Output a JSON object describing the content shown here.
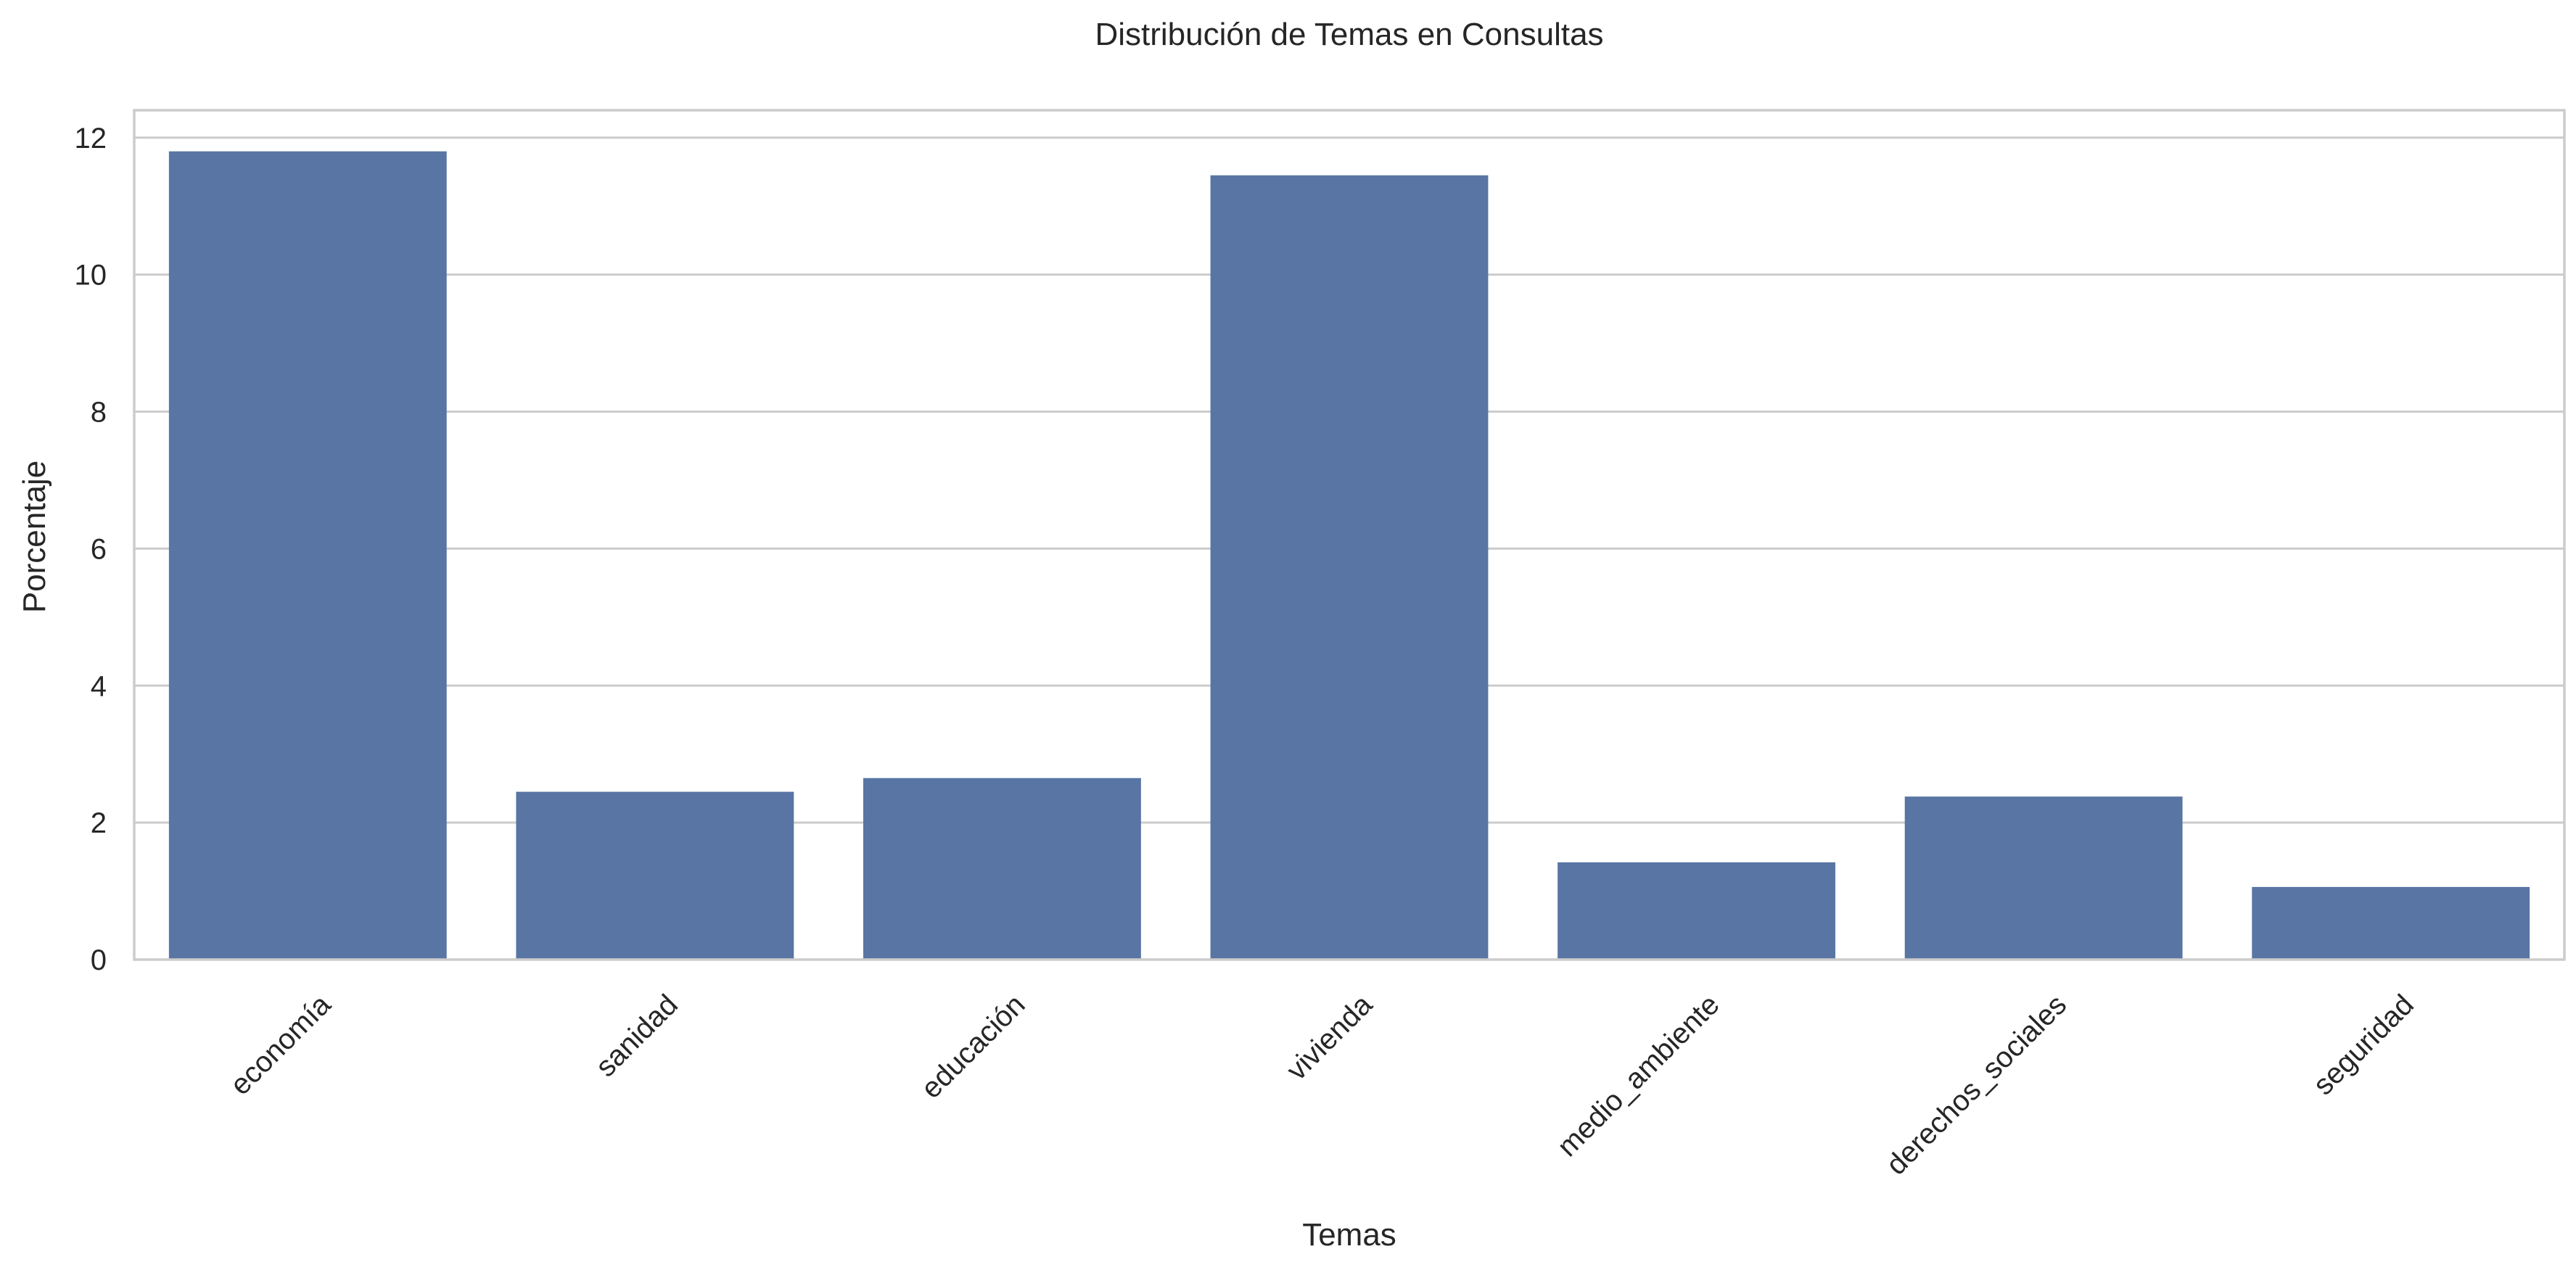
{
  "chart_data": {
    "type": "bar",
    "title": "Distribución de Temas en Consultas",
    "xlabel": "Temas",
    "ylabel": "Porcentaje",
    "categories": [
      "economía",
      "sanidad",
      "educación",
      "vivienda",
      "medio_ambiente",
      "derechos_sociales",
      "seguridad"
    ],
    "values": [
      11.8,
      2.45,
      2.65,
      11.45,
      1.42,
      2.38,
      1.06
    ],
    "ylim": [
      0,
      12.4
    ],
    "yticks": [
      0,
      2,
      4,
      6,
      8,
      10,
      12
    ],
    "grid": true,
    "bar_color": "#5875a4",
    "grid_color": "#cccccc"
  }
}
